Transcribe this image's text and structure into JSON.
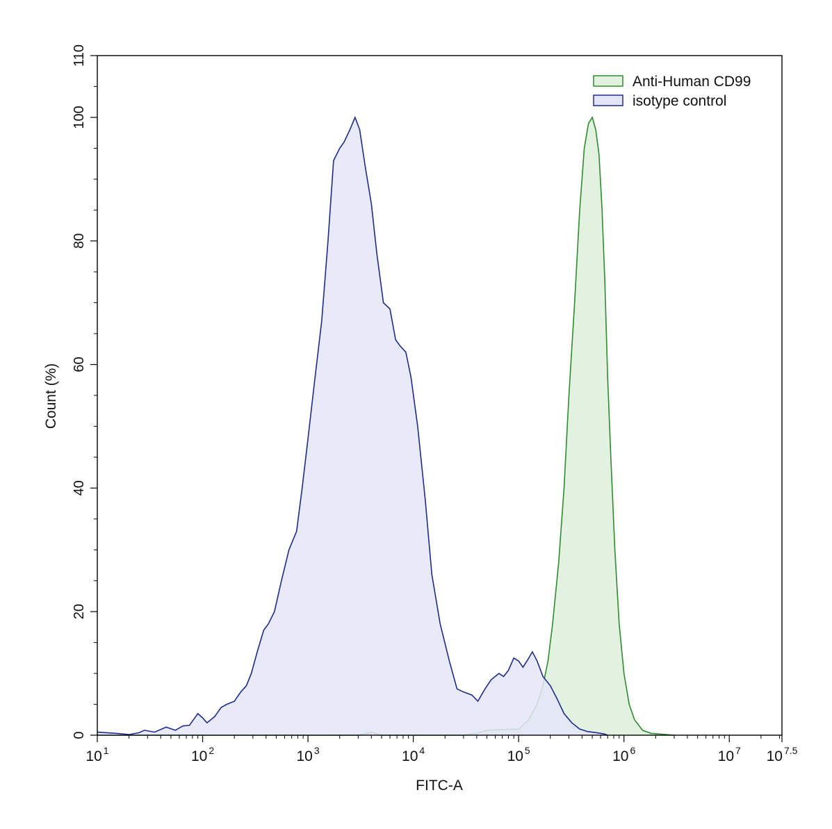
{
  "chart_data": {
    "type": "area",
    "xlabel": "FITC-A",
    "ylabel": "Count (%)",
    "x_scale": "log10",
    "xlim": [
      10,
      31622776.6
    ],
    "ylim": [
      0,
      110
    ],
    "x_ticks": [
      {
        "base": "10",
        "exp": "1",
        "value": 10
      },
      {
        "base": "10",
        "exp": "2",
        "value": 100
      },
      {
        "base": "10",
        "exp": "3",
        "value": 1000
      },
      {
        "base": "10",
        "exp": "4",
        "value": 10000
      },
      {
        "base": "10",
        "exp": "5",
        "value": 100000
      },
      {
        "base": "10",
        "exp": "6",
        "value": 1000000
      },
      {
        "base": "10",
        "exp": "7",
        "value": 10000000
      },
      {
        "base": "10",
        "exp": "7.5",
        "value": 31622776.6
      }
    ],
    "y_ticks": [
      "0",
      "20",
      "40",
      "60",
      "80",
      "100",
      "110"
    ],
    "grid": false,
    "legend_position": "top-right",
    "series": [
      {
        "name": "Anti-Human CD99",
        "stroke": "#2e8b2e",
        "fill": "#e3f2e0",
        "points": [
          [
            10,
            0
          ],
          [
            1000,
            0
          ],
          [
            3000,
            0
          ],
          [
            4000,
            0.5
          ],
          [
            5000,
            0
          ],
          [
            30000,
            0
          ],
          [
            40000,
            0.3
          ],
          [
            50000,
            0.8
          ],
          [
            70000,
            0.9
          ],
          [
            100000,
            1.0
          ],
          [
            125000,
            2.5
          ],
          [
            150000,
            5
          ],
          [
            170000,
            8
          ],
          [
            190000,
            12
          ],
          [
            210000,
            18
          ],
          [
            240000,
            28
          ],
          [
            270000,
            40
          ],
          [
            300000,
            55
          ],
          [
            340000,
            70
          ],
          [
            380000,
            85
          ],
          [
            420000,
            95
          ],
          [
            460000,
            99
          ],
          [
            500000,
            100
          ],
          [
            540000,
            98
          ],
          [
            580000,
            94
          ],
          [
            620000,
            85
          ],
          [
            660000,
            73
          ],
          [
            700000,
            58
          ],
          [
            750000,
            45
          ],
          [
            820000,
            30
          ],
          [
            900000,
            18
          ],
          [
            1000000,
            10
          ],
          [
            1120000,
            5
          ],
          [
            1260000,
            2.5
          ],
          [
            1500000,
            0.8
          ],
          [
            1800000,
            0.3
          ],
          [
            2500000,
            0.1
          ],
          [
            3000000,
            0
          ]
        ]
      },
      {
        "name": "isotype control",
        "stroke": "#1f2a8a",
        "fill": "#e4e6f8",
        "points": [
          [
            10,
            0.5
          ],
          [
            15,
            0.3
          ],
          [
            20,
            0.1
          ],
          [
            25,
            0.4
          ],
          [
            28,
            0.8
          ],
          [
            35,
            0.5
          ],
          [
            45,
            1.3
          ],
          [
            55,
            0.8
          ],
          [
            65,
            1.5
          ],
          [
            75,
            1.6
          ],
          [
            90,
            3.5
          ],
          [
            100,
            2.8
          ],
          [
            110,
            2.0
          ],
          [
            130,
            3.0
          ],
          [
            150,
            4.5
          ],
          [
            170,
            5.0
          ],
          [
            200,
            5.5
          ],
          [
            230,
            7.0
          ],
          [
            260,
            8.0
          ],
          [
            290,
            10.0
          ],
          [
            330,
            13.5
          ],
          [
            380,
            17.0
          ],
          [
            420,
            18.0
          ],
          [
            480,
            20.0
          ],
          [
            560,
            25.0
          ],
          [
            660,
            30.0
          ],
          [
            780,
            33.0
          ],
          [
            880,
            40.0
          ],
          [
            1000,
            48.0
          ],
          [
            1150,
            57.0
          ],
          [
            1350,
            67.0
          ],
          [
            1550,
            80.0
          ],
          [
            1750,
            93.0
          ],
          [
            2000,
            95.0
          ],
          [
            2200,
            96.0
          ],
          [
            2500,
            98.0
          ],
          [
            2800,
            100.0
          ],
          [
            3100,
            98.0
          ],
          [
            3500,
            92.0
          ],
          [
            4000,
            86.0
          ],
          [
            4500,
            78.0
          ],
          [
            5200,
            70.0
          ],
          [
            6000,
            69.0
          ],
          [
            6800,
            64.0
          ],
          [
            7500,
            63.0
          ],
          [
            8500,
            62.0
          ],
          [
            9500,
            58.0
          ],
          [
            11000,
            50.0
          ],
          [
            13000,
            38.0
          ],
          [
            15000,
            26.0
          ],
          [
            18000,
            18.0
          ],
          [
            22000,
            12.0
          ],
          [
            26000,
            7.5
          ],
          [
            30000,
            7.0
          ],
          [
            36000,
            6.5
          ],
          [
            41000,
            5.5
          ],
          [
            48000,
            7.5
          ],
          [
            55000,
            9.0
          ],
          [
            65000,
            10.0
          ],
          [
            72000,
            9.5
          ],
          [
            80000,
            10.5
          ],
          [
            90000,
            12.5
          ],
          [
            100000,
            12.0
          ],
          [
            110000,
            11.0
          ],
          [
            125000,
            12.5
          ],
          [
            135000,
            13.5
          ],
          [
            150000,
            12.0
          ],
          [
            170000,
            9.5
          ],
          [
            200000,
            8.0
          ],
          [
            230000,
            6.0
          ],
          [
            270000,
            3.5
          ],
          [
            320000,
            2.0
          ],
          [
            380000,
            1.0
          ],
          [
            450000,
            0.6
          ],
          [
            550000,
            0.4
          ],
          [
            650000,
            0.2
          ],
          [
            700000,
            0
          ]
        ]
      }
    ]
  }
}
